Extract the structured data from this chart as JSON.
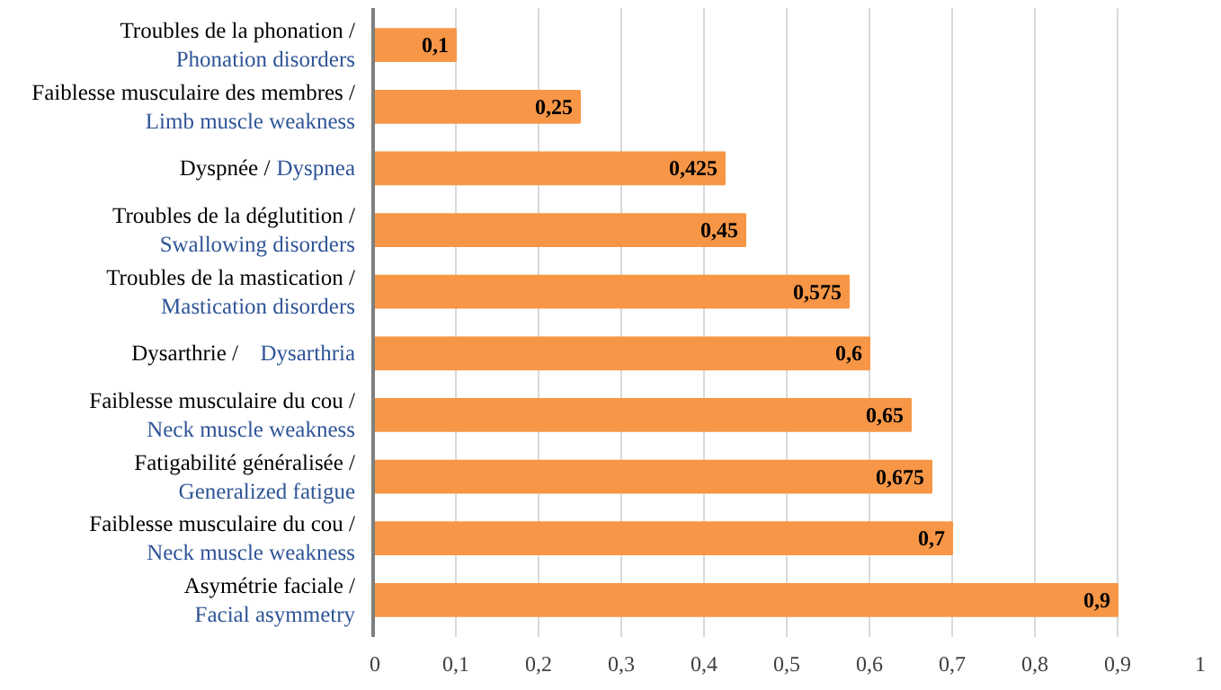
{
  "chart_data": {
    "type": "bar",
    "orientation": "horizontal",
    "categories": [
      "Troubles de la phonation / Phonation disorders",
      "Faiblesse musculaire des membres / Limb muscle weakness",
      "Dyspnée / Dyspnea",
      "Troubles de la déglutition / Swallowing disorders",
      "Troubles de la mastication / Mastication disorders",
      "Dysarthrie / Dysarthria",
      "Faiblesse musculaire du cou / Neck muscle weakness",
      "Fatigabilité généralisée / Generalized fatigue",
      "Faiblesse musculaire du cou / Neck muscle weakness",
      "Asymétrie faciale / Facial asymmetry"
    ],
    "values": [
      0.1,
      0.25,
      0.425,
      0.45,
      0.575,
      0.6,
      0.65,
      0.675,
      0.7,
      0.9
    ],
    "value_labels": [
      "0,1",
      "0,25",
      "0,425",
      "0,45",
      "0,575",
      "0,6",
      "0,65",
      "0,675",
      "0,7",
      "0,9"
    ],
    "color": "#f79646",
    "xlim": [
      0,
      1
    ],
    "xticks": [
      0,
      {
        "value": 0.1,
        "label": "0,1"
      },
      {
        "value": 0.2,
        "label": "0,2"
      },
      {
        "value": 0.3,
        "label": "0,3"
      },
      {
        "value": 0.4,
        "label": "0,4"
      },
      {
        "value": 0.5,
        "label": "0,5"
      },
      {
        "value": 0.6,
        "label": "0,6"
      },
      {
        "value": 0.7,
        "label": "0,7"
      },
      {
        "value": 0.8,
        "label": "0,8"
      },
      {
        "value": 0.9,
        "label": "0,9"
      },
      1
    ],
    "grid": "x"
  }
}
